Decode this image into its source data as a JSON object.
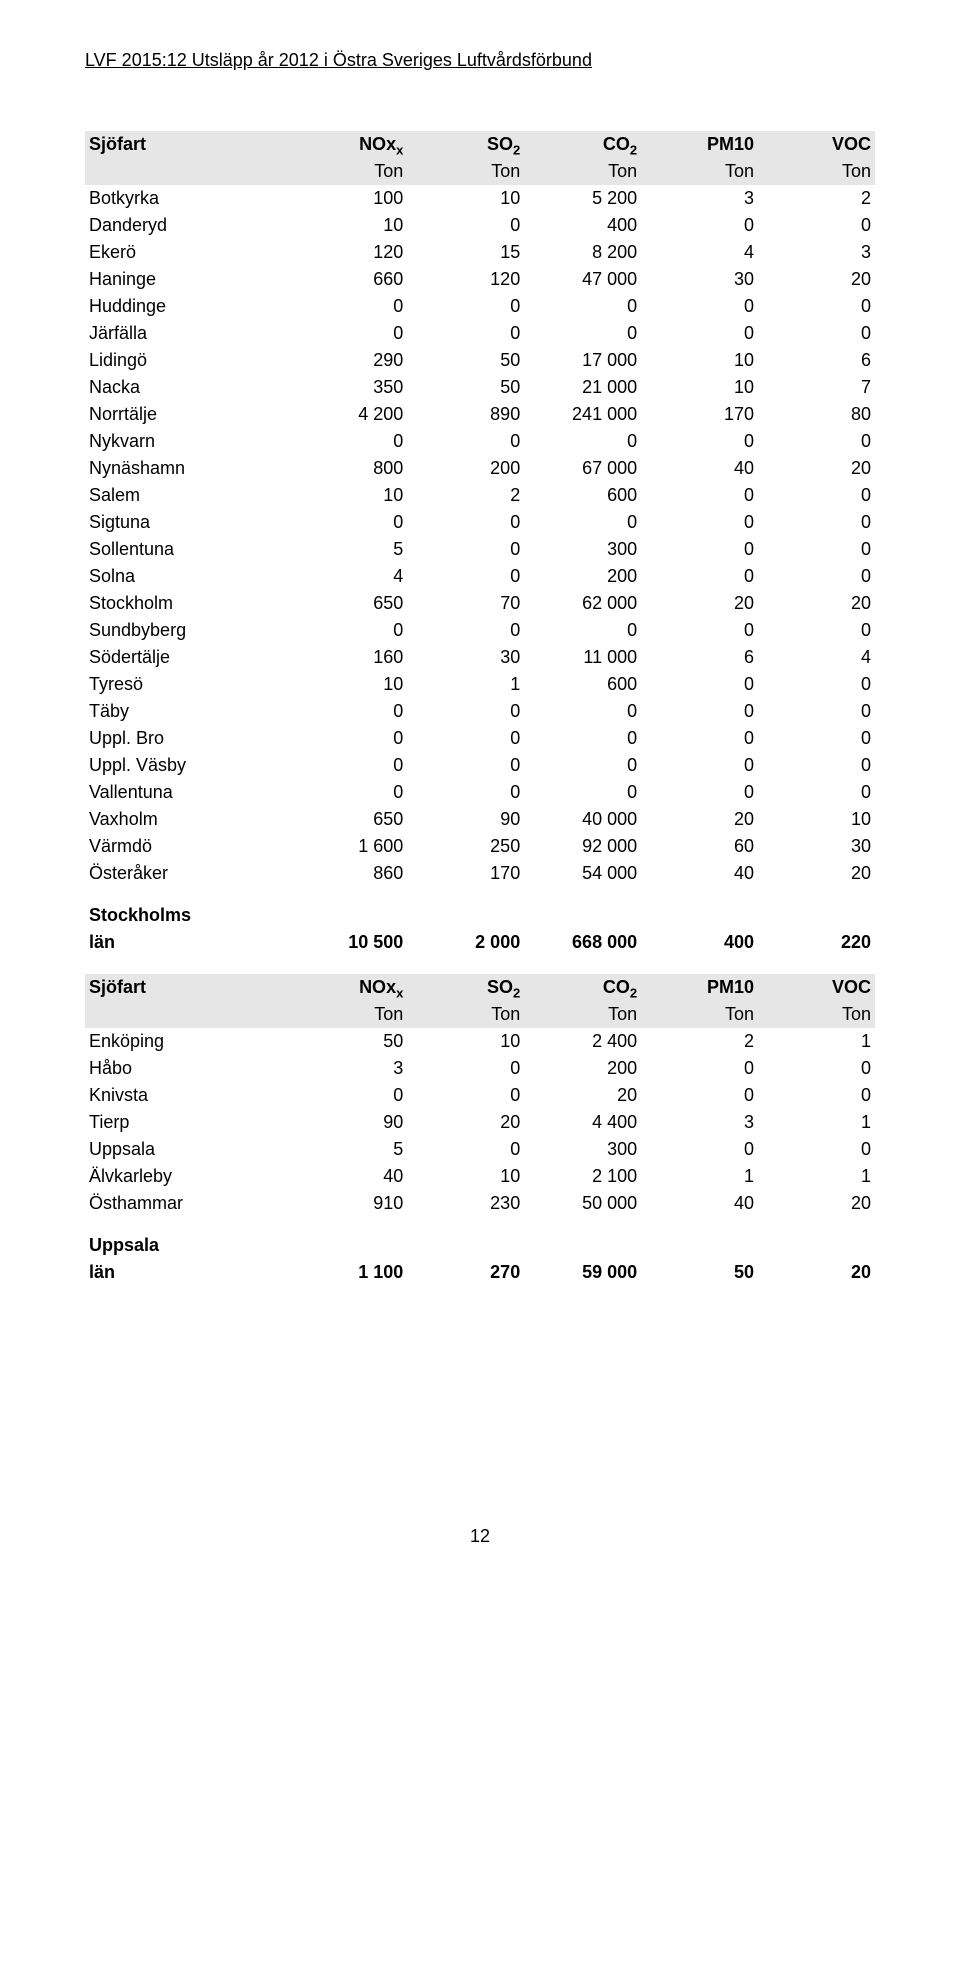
{
  "doc_header": "LVF 2015:12 Utsläpp år 2012 i Östra Sveriges Luftvårdsförbund",
  "page_number": "12",
  "table1": {
    "title": "Sjöfart",
    "cols": [
      "NOx",
      "SO2",
      "CO2",
      "PM10",
      "VOC"
    ],
    "units": [
      "Ton",
      "Ton",
      "Ton",
      "Ton",
      "Ton"
    ],
    "rows": [
      [
        "Botkyrka",
        "100",
        "10",
        "5 200",
        "3",
        "2"
      ],
      [
        "Danderyd",
        "10",
        "0",
        "400",
        "0",
        "0"
      ],
      [
        "Ekerö",
        "120",
        "15",
        "8 200",
        "4",
        "3"
      ],
      [
        "Haninge",
        "660",
        "120",
        "47 000",
        "30",
        "20"
      ],
      [
        "Huddinge",
        "0",
        "0",
        "0",
        "0",
        "0"
      ],
      [
        "Järfälla",
        "0",
        "0",
        "0",
        "0",
        "0"
      ],
      [
        "Lidingö",
        "290",
        "50",
        "17 000",
        "10",
        "6"
      ],
      [
        "Nacka",
        "350",
        "50",
        "21 000",
        "10",
        "7"
      ],
      [
        "Norrtälje",
        "4 200",
        "890",
        "241 000",
        "170",
        "80"
      ],
      [
        "Nykvarn",
        "0",
        "0",
        "0",
        "0",
        "0"
      ],
      [
        "Nynäshamn",
        "800",
        "200",
        "67 000",
        "40",
        "20"
      ],
      [
        "Salem",
        "10",
        "2",
        "600",
        "0",
        "0"
      ],
      [
        "Sigtuna",
        "0",
        "0",
        "0",
        "0",
        "0"
      ],
      [
        "Sollentuna",
        "5",
        "0",
        "300",
        "0",
        "0"
      ],
      [
        "Solna",
        "4",
        "0",
        "200",
        "0",
        "0"
      ],
      [
        "Stockholm",
        "650",
        "70",
        "62 000",
        "20",
        "20"
      ],
      [
        "Sundbyberg",
        "0",
        "0",
        "0",
        "0",
        "0"
      ],
      [
        "Södertälje",
        "160",
        "30",
        "11 000",
        "6",
        "4"
      ],
      [
        "Tyresö",
        "10",
        "1",
        "600",
        "0",
        "0"
      ],
      [
        "Täby",
        "0",
        "0",
        "0",
        "0",
        "0"
      ],
      [
        "Uppl. Bro",
        "0",
        "0",
        "0",
        "0",
        "0"
      ],
      [
        "Uppl. Väsby",
        "0",
        "0",
        "0",
        "0",
        "0"
      ],
      [
        "Vallentuna",
        "0",
        "0",
        "0",
        "0",
        "0"
      ],
      [
        "Vaxholm",
        "650",
        "90",
        "40 000",
        "20",
        "10"
      ],
      [
        "Värmdö",
        "1 600",
        "250",
        "92 000",
        "60",
        "30"
      ],
      [
        "Österåker",
        "860",
        "170",
        "54 000",
        "40",
        "20"
      ]
    ],
    "summary_label_l1": "Stockholms",
    "summary_label_l2": "län",
    "summary_vals": [
      "10 500",
      "2 000",
      "668 000",
      "400",
      "220"
    ]
  },
  "table2": {
    "title": "Sjöfart",
    "cols": [
      "NOx",
      "SO2",
      "CO2",
      "PM10",
      "VOC"
    ],
    "units": [
      "Ton",
      "Ton",
      "Ton",
      "Ton",
      "Ton"
    ],
    "rows": [
      [
        "Enköping",
        "50",
        "10",
        "2 400",
        "2",
        "1"
      ],
      [
        "Håbo",
        "3",
        "0",
        "200",
        "0",
        "0"
      ],
      [
        "Knivsta",
        "0",
        "0",
        "20",
        "0",
        "0"
      ],
      [
        "Tierp",
        "90",
        "20",
        "4 400",
        "3",
        "1"
      ],
      [
        "Uppsala",
        "5",
        "0",
        "300",
        "0",
        "0"
      ],
      [
        "Älvkarleby",
        "40",
        "10",
        "2 100",
        "1",
        "1"
      ],
      [
        "Östhammar",
        "910",
        "230",
        "50 000",
        "40",
        "20"
      ]
    ],
    "summary_label_l1": "Uppsala",
    "summary_label_l2": "län",
    "summary_vals": [
      "1 100",
      "270",
      "59 000",
      "50",
      "20"
    ]
  }
}
